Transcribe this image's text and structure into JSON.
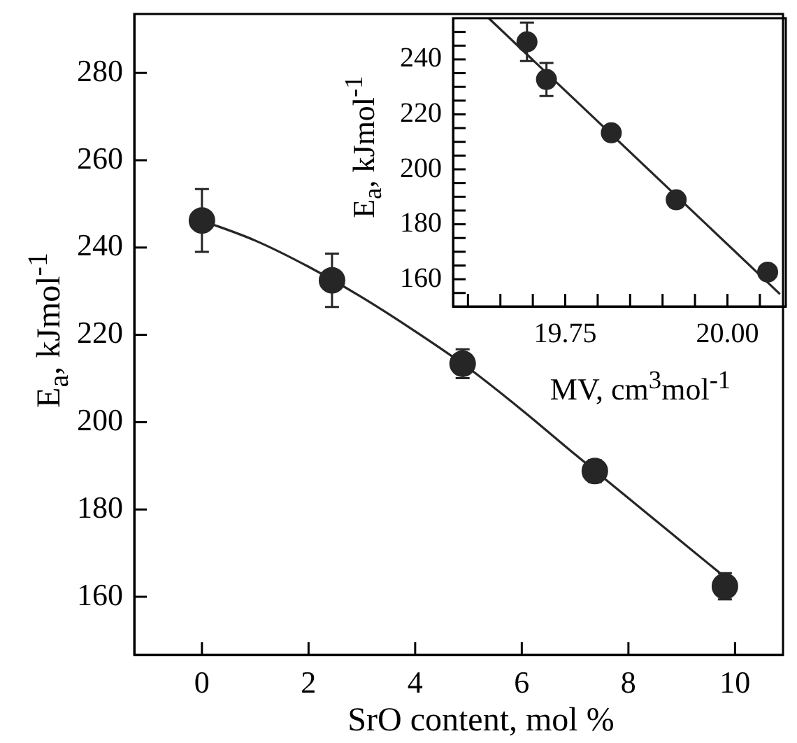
{
  "chart_data": [
    {
      "type": "scatter",
      "xlabel": "SrO content, mol %",
      "ylabel": "E$_{a}$, kJmol$^{-1}$",
      "xlim": [
        -1.27,
        10.9
      ],
      "ylim": [
        146.7,
        293.5
      ],
      "xticks": [
        0,
        2,
        4,
        6,
        8,
        10
      ],
      "yticks": [
        160,
        180,
        200,
        220,
        240,
        260,
        280
      ],
      "grid": false,
      "series": [
        {
          "marker": "circle",
          "color": "#262626",
          "x": [
            0,
            2.44,
            4.89,
            7.37,
            9.81
          ],
          "values": [
            246.2,
            232.5,
            213.4,
            188.8,
            162.4
          ],
          "errors": [
            7.2,
            6.1,
            3.3,
            2.5,
            3
          ]
        },
        {
          "type": "line",
          "marker": "none",
          "color": "#262626",
          "x": [
            0,
            1,
            2,
            3,
            4,
            5,
            6,
            7,
            8,
            9,
            9.8
          ],
          "values": [
            246.2,
            241.6,
            235.6,
            228.6,
            220.8,
            212.4,
            202.8,
            192.6,
            182.6,
            172.6,
            164.6
          ]
        }
      ]
    },
    {
      "type": "scatter",
      "xlabel": "MV, cm$^{3}$mol$^{-1}$",
      "ylabel": "E$_{a}$, kJmol$^{-1}$",
      "xlim": [
        19.577,
        20.09
      ],
      "ylim": [
        150.1,
        255
      ],
      "xticks": [
        {
          "value": 19.6,
          "label": null
        },
        {
          "value": 19.65,
          "label": null
        },
        {
          "value": 19.7,
          "label": null
        },
        19.75,
        {
          "value": 19.8,
          "label": null
        },
        {
          "value": 19.85,
          "label": null
        },
        {
          "value": 19.9,
          "label": null
        },
        {
          "value": 19.95,
          "label": null
        },
        {
          "value": 20,
          "label": "20.00"
        },
        {
          "value": 20.05,
          "label": null
        }
      ],
      "yticks": [
        {
          "value": 155,
          "label": null
        },
        160,
        {
          "value": 165,
          "label": null
        },
        {
          "value": 170,
          "label": null
        },
        {
          "value": 175,
          "label": null
        },
        180,
        {
          "value": 185,
          "label": null
        },
        {
          "value": 190,
          "label": null
        },
        {
          "value": 195,
          "label": null
        },
        200,
        {
          "value": 205,
          "label": null
        },
        {
          "value": 210,
          "label": null
        },
        {
          "value": 215,
          "label": null
        },
        220,
        {
          "value": 225,
          "label": null
        },
        {
          "value": 230,
          "label": null
        },
        {
          "value": 235,
          "label": null
        },
        240,
        {
          "value": 245,
          "label": null
        },
        {
          "value": 250,
          "label": null
        }
      ],
      "grid": false,
      "series": [
        {
          "marker": "circle",
          "color": "#262626",
          "x": [
            19.691,
            19.721,
            19.821,
            19.921,
            20.062
          ],
          "values": [
            246.4,
            232.7,
            213.3,
            188.9,
            162.6
          ],
          "errors": [
            7,
            6,
            null,
            null,
            null
          ]
        },
        {
          "type": "line",
          "marker": "none",
          "color": "#262626",
          "x": [
            19.632,
            20.081
          ],
          "values": [
            255,
            154.6
          ]
        }
      ]
    }
  ]
}
